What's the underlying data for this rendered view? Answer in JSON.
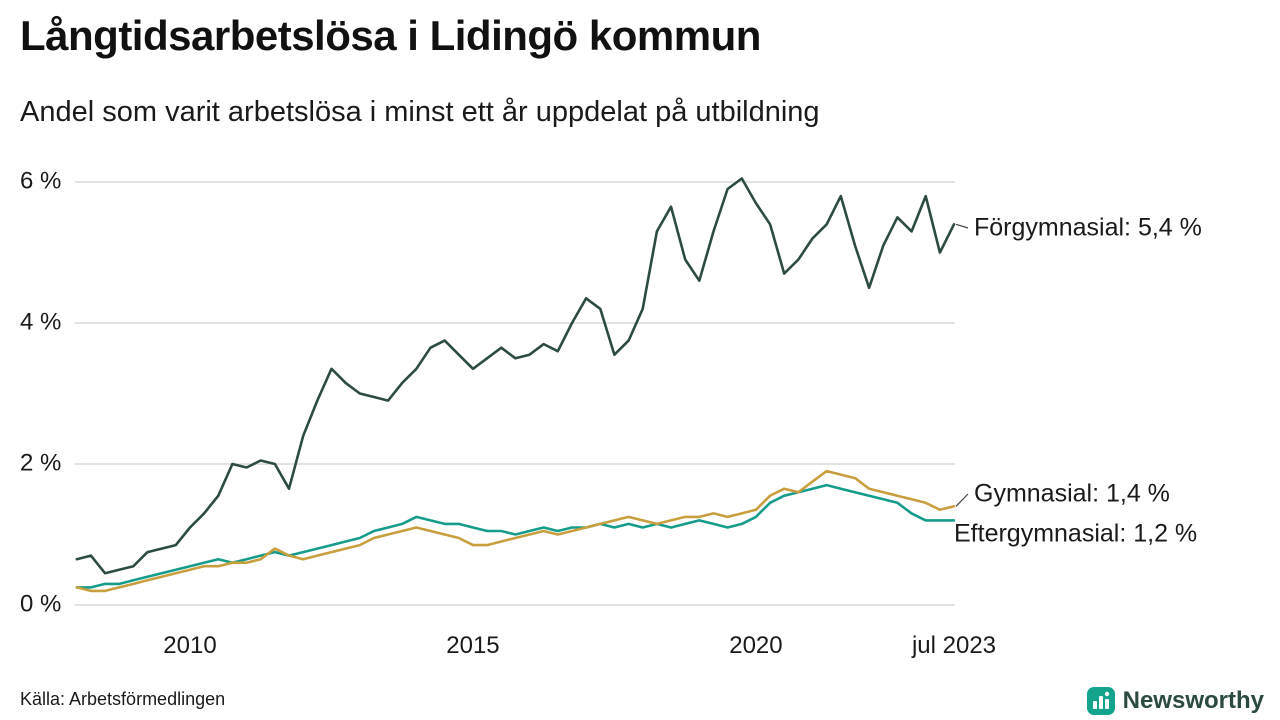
{
  "title": "Långtidsarbetslösa i Lidingö kommun",
  "subtitle": "Andel som varit arbetslösa i minst ett år uppdelat på utbildning",
  "source": "Källa: Arbetsförmedlingen",
  "brand": {
    "name": "Newsworthy",
    "icon_color": "#14a38c",
    "text_color": "#2b4a40"
  },
  "chart_data": {
    "type": "line",
    "title": "Långtidsarbetslösa i Lidingö kommun",
    "subtitle": "Andel som varit arbetslösa i minst ett år uppdelat på utbildning",
    "x_start": 2008.0,
    "x_step": 0.25,
    "xlim": [
      2008,
      2023.5
    ],
    "ylim": [
      0,
      6
    ],
    "grid": "horizontal",
    "legend_position": "right-end-of-line",
    "y_ticks": [
      {
        "value": 0,
        "label": "0 %"
      },
      {
        "value": 2,
        "label": "2 %"
      },
      {
        "value": 4,
        "label": "4 %"
      },
      {
        "value": 6,
        "label": "6 %"
      }
    ],
    "x_ticks": [
      {
        "value": 2010,
        "label": "2010"
      },
      {
        "value": 2015,
        "label": "2015"
      },
      {
        "value": 2020,
        "label": "2020"
      },
      {
        "value": 2023.5,
        "label": "jul 2023"
      }
    ],
    "series": [
      {
        "id": "forgymnasial",
        "name": "Förgymnasial",
        "color": "#2c4c40",
        "end_value": 5.4,
        "end_label": "Förgymnasial: 5,4 %",
        "values": [
          0.65,
          0.7,
          0.45,
          0.5,
          0.55,
          0.75,
          0.8,
          0.85,
          1.1,
          1.3,
          1.55,
          2.0,
          1.95,
          2.05,
          2.0,
          1.65,
          2.4,
          2.9,
          3.35,
          3.15,
          3.0,
          2.95,
          2.9,
          3.15,
          3.35,
          3.65,
          3.75,
          3.55,
          3.35,
          3.5,
          3.65,
          3.5,
          3.55,
          3.7,
          3.6,
          4.0,
          4.35,
          4.2,
          3.55,
          3.75,
          4.2,
          5.3,
          5.65,
          4.9,
          4.6,
          5.3,
          5.9,
          6.05,
          5.7,
          5.4,
          4.7,
          4.9,
          5.2,
          5.4,
          5.8,
          5.1,
          4.5,
          5.1,
          5.5,
          5.3,
          5.8,
          5.0,
          5.4
        ]
      },
      {
        "id": "gymnasial",
        "name": "Gymnasial",
        "color": "#c79f3f",
        "end_value": 1.4,
        "end_label": "Gymnasial: 1,4 %",
        "values": [
          0.25,
          0.2,
          0.2,
          0.25,
          0.3,
          0.35,
          0.4,
          0.45,
          0.5,
          0.55,
          0.55,
          0.6,
          0.6,
          0.65,
          0.8,
          0.7,
          0.65,
          0.7,
          0.75,
          0.8,
          0.85,
          0.95,
          1.0,
          1.05,
          1.1,
          1.05,
          1.0,
          0.95,
          0.85,
          0.85,
          0.9,
          0.95,
          1.0,
          1.05,
          1.0,
          1.05,
          1.1,
          1.15,
          1.2,
          1.25,
          1.2,
          1.15,
          1.2,
          1.25,
          1.25,
          1.3,
          1.25,
          1.3,
          1.35,
          1.55,
          1.65,
          1.6,
          1.75,
          1.9,
          1.85,
          1.8,
          1.65,
          1.6,
          1.55,
          1.5,
          1.45,
          1.35,
          1.4
        ]
      },
      {
        "id": "eftergymnasial",
        "name": "Eftergymnasial",
        "color": "#169c8b",
        "end_value": 1.2,
        "end_label": "Eftergymnasial: 1,2 %",
        "values": [
          0.25,
          0.25,
          0.3,
          0.3,
          0.35,
          0.4,
          0.45,
          0.5,
          0.55,
          0.6,
          0.65,
          0.6,
          0.65,
          0.7,
          0.75,
          0.7,
          0.75,
          0.8,
          0.85,
          0.9,
          0.95,
          1.05,
          1.1,
          1.15,
          1.25,
          1.2,
          1.15,
          1.15,
          1.1,
          1.05,
          1.05,
          1.0,
          1.05,
          1.1,
          1.05,
          1.1,
          1.1,
          1.15,
          1.1,
          1.15,
          1.1,
          1.15,
          1.1,
          1.15,
          1.2,
          1.15,
          1.1,
          1.15,
          1.25,
          1.45,
          1.55,
          1.6,
          1.65,
          1.7,
          1.65,
          1.6,
          1.55,
          1.5,
          1.45,
          1.3,
          1.2,
          1.2,
          1.2
        ]
      }
    ]
  }
}
